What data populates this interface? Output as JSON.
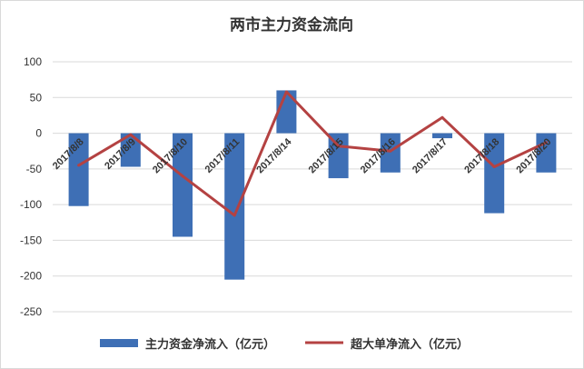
{
  "chart_data": {
    "type": "bar",
    "title": "两市主力资金流向",
    "categories": [
      "2017/8/8",
      "2017/8/9",
      "2017/8/10",
      "2017/8/11",
      "2017/8/14",
      "2017/8/15",
      "2017/8/16",
      "2017/8/17",
      "2017/8/18",
      "2017/8/20"
    ],
    "series": [
      {
        "name": "主力资金净流入（亿元）",
        "type": "bar",
        "color": "#3e6fb5",
        "values": [
          -102,
          -47,
          -145,
          -205,
          60,
          -63,
          -55,
          -7,
          -112,
          -55
        ]
      },
      {
        "name": "超大单净流入（亿元）",
        "type": "line",
        "color": "#b44242",
        "values": [
          -45,
          -2,
          -60,
          -115,
          58,
          -18,
          -25,
          22,
          -47,
          -13
        ]
      }
    ],
    "ylim": [
      -250,
      100
    ],
    "yticks": [
      100,
      50,
      0,
      -50,
      -100,
      -150,
      -200,
      -250
    ],
    "grid": true,
    "legend": "bottom"
  }
}
